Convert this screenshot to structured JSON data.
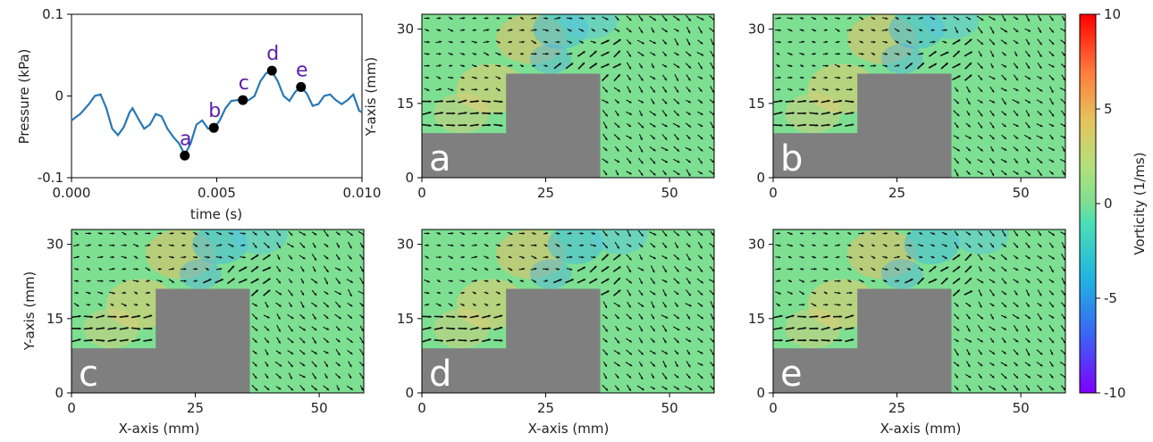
{
  "chart_data": [
    {
      "type": "line",
      "title": "",
      "xlabel": "time (s)",
      "ylabel": "Pressure (kPa)",
      "xlim": [
        0,
        0.01
      ],
      "ylim": [
        -0.1,
        0.1
      ],
      "xticks": [
        "0.000",
        "0.005",
        "0.010"
      ],
      "yticks": [
        "0.1",
        "0",
        "-0.1"
      ],
      "series": [
        {
          "x": [
            0.0,
            0.0003,
            0.0006,
            0.0008,
            0.001,
            0.0012,
            0.0014,
            0.0016,
            0.0018,
            0.002,
            0.0021,
            0.0023,
            0.0025,
            0.0027,
            0.0029,
            0.0031,
            0.0033,
            0.0035,
            0.0037,
            0.0039,
            0.0041,
            0.0043,
            0.0045,
            0.0047,
            0.0049,
            0.0051,
            0.0053,
            0.0055,
            0.0057,
            0.0059,
            0.0061,
            0.0063,
            0.0065,
            0.0067,
            0.0069,
            0.0071,
            0.0073,
            0.0075,
            0.0077,
            0.0079,
            0.0081,
            0.0083,
            0.0085,
            0.0087,
            0.0089,
            0.0091,
            0.0093,
            0.0095,
            0.0097,
            0.0099,
            0.01
          ],
          "values": [
            -0.03,
            -0.022,
            -0.01,
            0.0,
            0.002,
            -0.015,
            -0.04,
            -0.048,
            -0.038,
            -0.02,
            -0.015,
            -0.028,
            -0.04,
            -0.035,
            -0.022,
            -0.025,
            -0.04,
            -0.05,
            -0.058,
            -0.072,
            -0.058,
            -0.035,
            -0.03,
            -0.04,
            -0.04,
            -0.03,
            -0.015,
            -0.006,
            -0.005,
            -0.006,
            -0.005,
            0.0,
            0.018,
            0.028,
            0.03,
            0.018,
            0.0,
            -0.006,
            0.005,
            0.011,
            0.003,
            -0.012,
            -0.01,
            0.0,
            0.002,
            -0.005,
            -0.01,
            -0.005,
            0.002,
            -0.018,
            -0.02
          ]
        }
      ],
      "points": [
        {
          "label": "a",
          "x": 0.0039,
          "y": -0.073
        },
        {
          "label": "b",
          "x": 0.0049,
          "y": -0.039
        },
        {
          "label": "c",
          "x": 0.0059,
          "y": -0.005
        },
        {
          "label": "d",
          "x": 0.0069,
          "y": 0.031
        },
        {
          "label": "e",
          "x": 0.0079,
          "y": 0.011
        }
      ]
    },
    {
      "type": "heatmap",
      "description_type": "vorticity field with velocity vectors",
      "xlabel": "X-axis (mm)",
      "ylabel": "Y-axis (mm)",
      "xlim": [
        0,
        59
      ],
      "ylim": [
        0,
        33
      ],
      "xticks": [
        "0",
        "25",
        "50"
      ],
      "yticks": [
        "30",
        "15",
        "0"
      ],
      "obstacle": {
        "step_x": 17,
        "step_y": 9,
        "block_x": [
          17,
          36
        ],
        "block_y": 21
      },
      "panels": [
        "a",
        "b",
        "c",
        "d",
        "e"
      ],
      "colorbar": {
        "label": "Vorticity (1/ms)",
        "range": [
          -10,
          10
        ],
        "ticks": [
          "10",
          "5",
          "0",
          "-5",
          "-10"
        ],
        "colormap": "rainbow"
      }
    }
  ],
  "colors": {
    "line": "#2878b5",
    "field_background": "#7ddf92",
    "obstacle": "#7f7f7f",
    "arrow": "#111111",
    "point": "#000000",
    "point_label": "#5b1fa8"
  }
}
